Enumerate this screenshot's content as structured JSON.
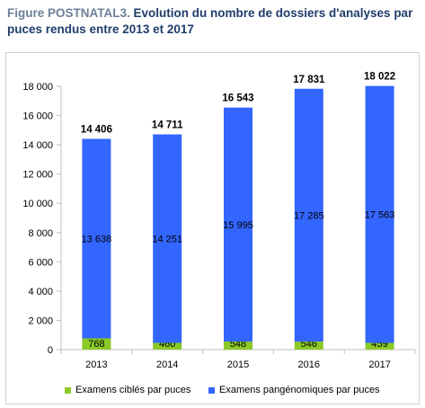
{
  "title": {
    "label": "Figure POSTNATAL3.",
    "text": "Evolution du nombre de dossiers d'analyses par puces rendus entre 2013 et 2017"
  },
  "colors": {
    "ciblés": "#8ac926",
    "pangenomiques": "#3366ff",
    "axis": "#bfbfbf"
  },
  "chart_data": {
    "type": "bar",
    "stacked": true,
    "categories": [
      "2013",
      "2014",
      "2015",
      "2016",
      "2017"
    ],
    "series": [
      {
        "name": "Examens ciblés par puces",
        "values": [
          768,
          460,
          548,
          546,
          459
        ]
      },
      {
        "name": "Examens pangénomiques par puces",
        "values": [
          13638,
          14251,
          15995,
          17285,
          17563
        ]
      }
    ],
    "segment_labels": [
      [
        "768",
        "460",
        "548",
        "546",
        "459"
      ],
      [
        "13 638",
        "14 251",
        "15 995",
        "17 285",
        "17 563"
      ]
    ],
    "total_labels": [
      "14 406",
      "14 711",
      "16 543",
      "17 831",
      "18 022"
    ],
    "y_ticks": [
      0,
      2000,
      4000,
      6000,
      8000,
      10000,
      12000,
      14000,
      16000,
      18000
    ],
    "y_tick_labels": [
      "0",
      "2 000",
      "4 000",
      "6 000",
      "8 000",
      "10 000",
      "12 000",
      "14 000",
      "16 000",
      "18 000"
    ],
    "ylim": [
      0,
      18000
    ],
    "grid": false,
    "legend": "bottom",
    "xlabel": "",
    "ylabel": ""
  }
}
